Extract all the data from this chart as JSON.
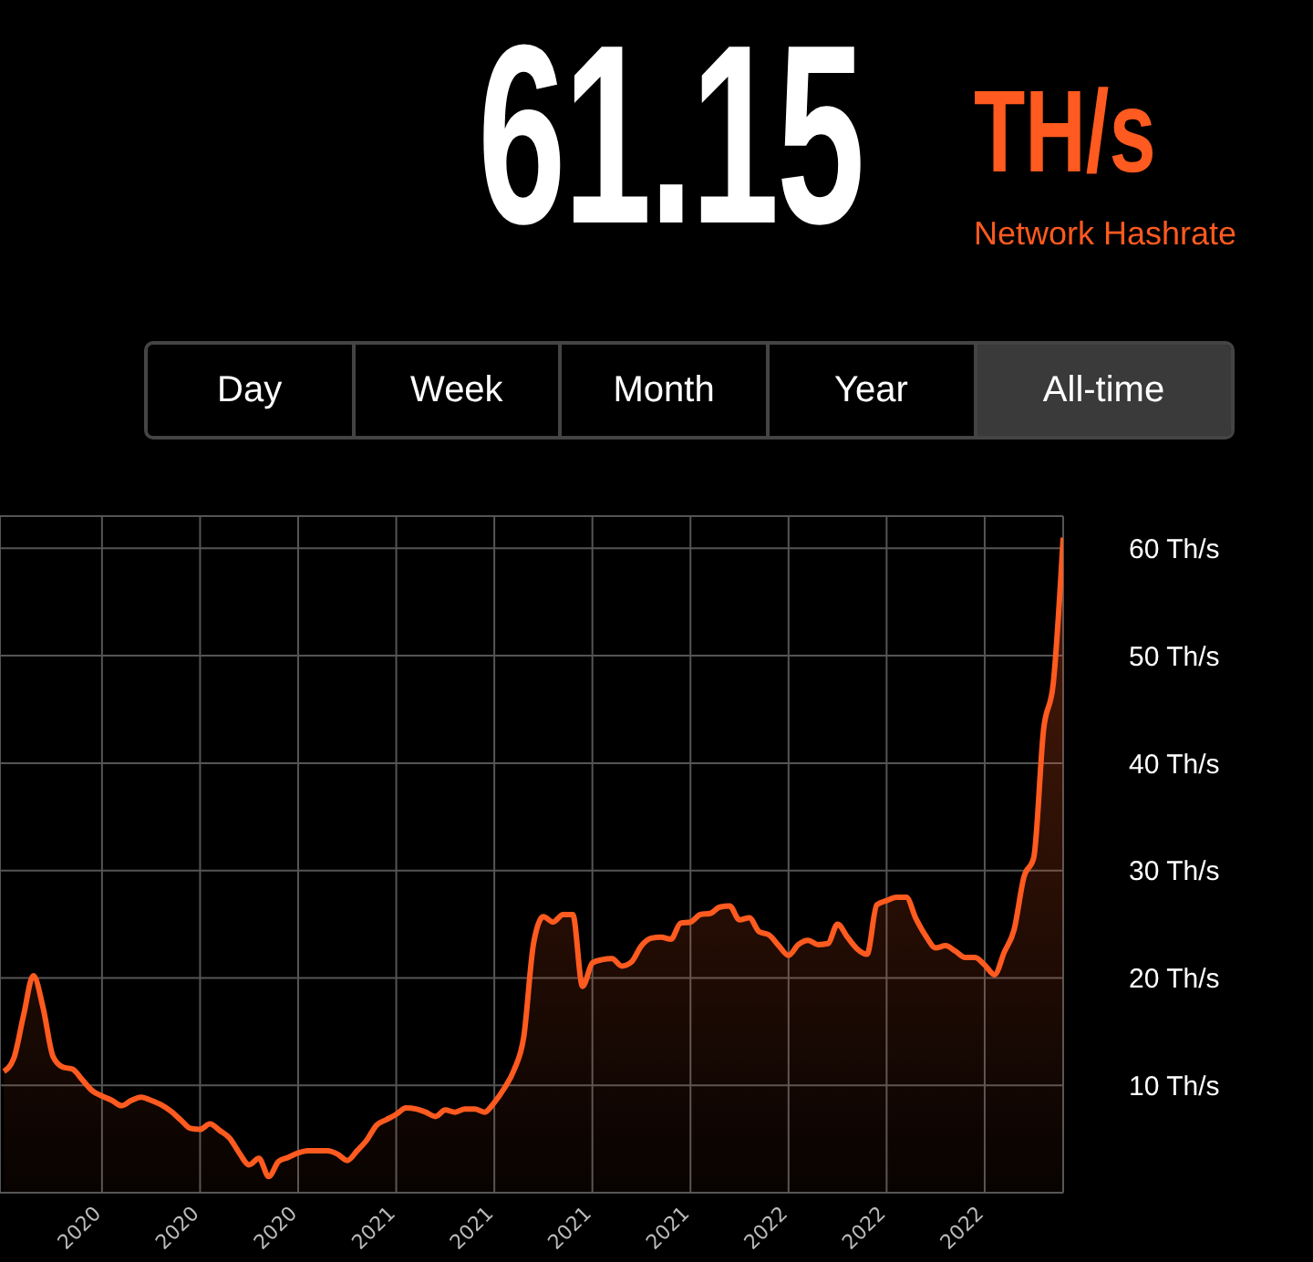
{
  "chart_data": {
    "type": "area",
    "title": "61.15",
    "subtitle": "Network Hashrate",
    "annotations": [
      "TH/s",
      "Day",
      "Week",
      "Month",
      "Year",
      "All-time"
    ],
    "categories": [
      null,
      null,
      null,
      null,
      null,
      null,
      null,
      null,
      null,
      null,
      "2020",
      null,
      null,
      null,
      null,
      null,
      null,
      null,
      null,
      null,
      "2020",
      null,
      null,
      null,
      null,
      null,
      null,
      null,
      null,
      null,
      "2020",
      null,
      null,
      null,
      null,
      null,
      null,
      null,
      null,
      null,
      "2021",
      null,
      null,
      null,
      null,
      null,
      null,
      null,
      null,
      null,
      "2021",
      null,
      null,
      null,
      null,
      null,
      null,
      null,
      null,
      null,
      "2021",
      null,
      null,
      null,
      null,
      null,
      null,
      null,
      null,
      null,
      "2021",
      null,
      null,
      null,
      null,
      null,
      null,
      null,
      null,
      null,
      "2022",
      null,
      null,
      null,
      null,
      null,
      null,
      null,
      null,
      null,
      "2022",
      null,
      null,
      null,
      null,
      null,
      null,
      null,
      null,
      null,
      "2022",
      null,
      null,
      null,
      null,
      null,
      null,
      null,
      null
    ],
    "series": [
      {
        "color": "#ff5a1f",
        "values": [
          11.3,
          12.5,
          16.5,
          20.2,
          17.2,
          12.7,
          11.7,
          11.5,
          10.5,
          9.5,
          9.0,
          8.6,
          8.1,
          8.6,
          8.9,
          8.6,
          8.2,
          7.6,
          6.8,
          6.0,
          5.9,
          6.4,
          5.8,
          5.1,
          3.7,
          2.6,
          3.2,
          1.5,
          2.9,
          3.3,
          3.7,
          3.9,
          3.9,
          3.9,
          3.6,
          3.0,
          3.9,
          4.9,
          6.3,
          6.8,
          7.3,
          7.9,
          7.8,
          7.5,
          7.1,
          7.7,
          7.5,
          7.8,
          7.8,
          7.5,
          8.4,
          9.7,
          11.4,
          14.5,
          23.2,
          25.7,
          25.2,
          25.9,
          25.9,
          19.2,
          21.4,
          21.7,
          21.8,
          21.1,
          21.5,
          23.0,
          23.7,
          23.8,
          23.6,
          25.1,
          25.2,
          25.9,
          26.0,
          26.6,
          26.7,
          25.4,
          25.6,
          24.3,
          24.0,
          23.0,
          22.1,
          23.1,
          23.5,
          23.1,
          23.2,
          25.0,
          23.8,
          22.7,
          22.2,
          26.8,
          27.2,
          27.5,
          27.5,
          25.5,
          23.9,
          22.8,
          23.0,
          22.5,
          21.9,
          21.9,
          21.2,
          20.3,
          22.4,
          24.5,
          29.4,
          31.2,
          43.1,
          47.5,
          61.0
        ]
      }
    ],
    "ylim": [
      0,
      63
    ],
    "yticks": [
      {
        "value": 10,
        "label": "10 Th/s"
      },
      {
        "value": 20,
        "label": "20 Th/s"
      },
      {
        "value": 30,
        "label": "30 Th/s"
      },
      {
        "value": 40,
        "label": "40 Th/s"
      },
      {
        "value": 50,
        "label": "50 Th/s"
      },
      {
        "value": 60,
        "label": "60 Th/s"
      }
    ],
    "grid": true,
    "marker": "none"
  }
}
